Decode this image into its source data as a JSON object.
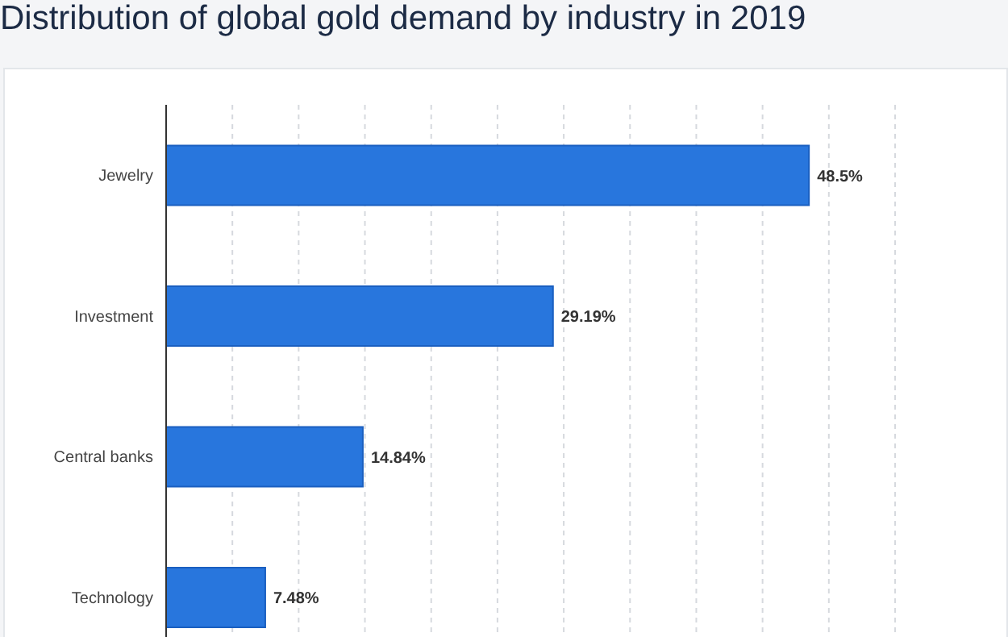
{
  "chart_data": {
    "type": "bar",
    "orientation": "horizontal",
    "title": "Distribution of global gold demand by industry in 2019",
    "categories": [
      "Jewelry",
      "Investment",
      "Central banks",
      "Technology"
    ],
    "values": [
      48.5,
      29.19,
      14.84,
      7.48
    ],
    "value_labels": [
      "48.5%",
      "29.19%",
      "14.84%",
      "7.48%"
    ],
    "color": "#2876dd",
    "tick_labels": "y",
    "grid": "x",
    "legend": false
  }
}
